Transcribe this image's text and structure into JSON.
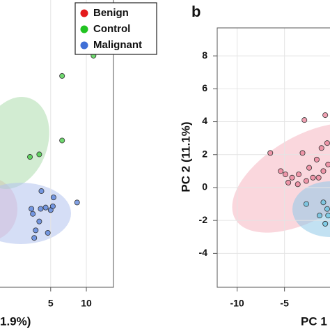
{
  "chart_data": [
    {
      "type": "scatter",
      "x_label": "1.9%)",
      "xlim": [
        -2.1,
        13.8
      ],
      "xticks": [
        5,
        10
      ],
      "ylim": [
        -7.4,
        15.3
      ],
      "grid": true,
      "series": [
        {
          "name": "Benign",
          "color": "#e41a1c",
          "x": [],
          "values": []
        },
        {
          "name": "Control",
          "color": "#22c322",
          "x": [
            6.6,
            11,
            6.6,
            3.4,
            2.1
          ],
          "values": [
            9.3,
            10.9,
            4.2,
            3.1,
            2.9
          ]
        },
        {
          "name": "Malignant",
          "color": "#3f6fd6",
          "x": [
            3.6,
            4.3,
            5,
            5.4,
            5.3,
            3.4,
            2.9,
            2.5,
            4.6,
            8.7,
            3.7,
            2.3,
            2.7
          ],
          "values": [
            -1.2,
            -1.1,
            -1.3,
            -0.3,
            -1,
            -2.2,
            -2.9,
            -1.6,
            -3.1,
            -0.7,
            0.2,
            -1.2,
            -3.5
          ]
        }
      ]
    },
    {
      "type": "scatter",
      "panel_label": "b",
      "x_label": "PC 1",
      "y_label": "PC 2 (11.1%)",
      "xlim": [
        -12.1,
        -0.2
      ],
      "xticks": [
        -10,
        -5
      ],
      "ylim": [
        -6.06,
        9.7
      ],
      "yticks": [
        -4,
        -2,
        0,
        2,
        4,
        6,
        8
      ],
      "grid": true,
      "series": [
        {
          "color": "#e8708a",
          "x": [
            -6.5,
            -0.7,
            -2.9,
            -5.4,
            -4.6,
            -4.2,
            -3.5,
            -3.1,
            -2.4,
            -1.6,
            -1.1,
            -0.5,
            -2,
            -0.9,
            -3.6,
            -2.7,
            -1.4,
            -0.4,
            -4.9
          ],
          "values": [
            2.1,
            4.4,
            4.1,
            1.0,
            0.3,
            0.6,
            0.8,
            2.1,
            1.2,
            1.7,
            2.4,
            2.7,
            0.6,
            1.0,
            0.2,
            0.4,
            0.6,
            1.4,
            0.8
          ]
        },
        {
          "color": "#5bc0de",
          "x": [
            -2.7,
            -0.9,
            -0.5,
            -1.3,
            -0.7,
            -0.4
          ],
          "values": [
            -1.0,
            -0.9,
            -1.3,
            -1.7,
            -2.2,
            -1.7
          ]
        }
      ]
    }
  ]
}
